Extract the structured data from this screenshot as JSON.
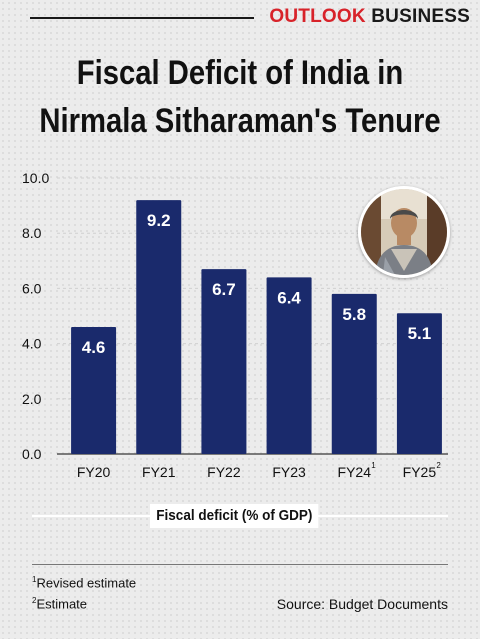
{
  "brand": {
    "part1": "OUTLOOK",
    "part2": " BUSINESS",
    "accent_color": "#d8232a"
  },
  "title": {
    "line1": "Fiscal Deficit of India in",
    "line2": "Nirmala Sitharaman's Tenure"
  },
  "chart_data": {
    "type": "bar",
    "title": "Fiscal Deficit of India in Nirmala Sitharaman's Tenure",
    "categories": [
      "FY20",
      "FY21",
      "FY22",
      "FY23",
      "FY24",
      "FY25"
    ],
    "category_superscripts": [
      "",
      "",
      "",
      "",
      "1",
      "2"
    ],
    "values": [
      4.6,
      9.2,
      6.7,
      6.4,
      5.8,
      5.1
    ],
    "data_labels": [
      "4.6",
      "9.2",
      "6.7",
      "6.4",
      "5.8",
      "5.1"
    ],
    "xlabel": "Fiscal deficit (% of GDP)",
    "ylabel": "",
    "ylim": [
      0,
      10
    ],
    "yticks": [
      "0.0",
      "2.0",
      "4.0",
      "6.0",
      "8.0",
      "10.0"
    ],
    "grid": true,
    "bar_color": "#1a2a6c"
  },
  "footnotes": {
    "n1_mark": "1",
    "n1_text": "Revised estimate",
    "n2_mark": "2",
    "n2_text": "Estimate"
  },
  "source": "Source: Budget Documents",
  "photo": {
    "icon": "portrait-photo-icon"
  }
}
